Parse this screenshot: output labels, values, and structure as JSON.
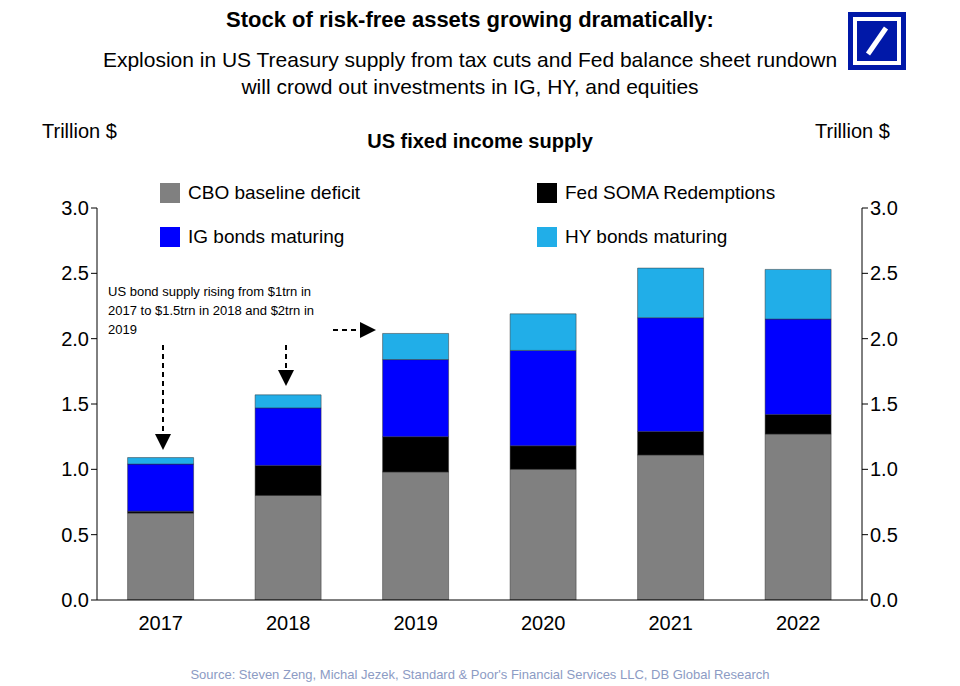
{
  "title": "Stock of risk-free assets growing dramatically:",
  "subtitle": "Explosion in US Treasury supply from tax cuts and Fed balance sheet rundown will crowd out investments in IG, HY, and equities",
  "source": "Source:  Steven Zeng, Michal Jezek, Standard  & Poor's Financial Services LLC, DB Global Research",
  "chart_data": {
    "type": "bar",
    "title": "US fixed income supply",
    "y_label": "Trillion $",
    "y2_label": "Trillion $",
    "annotation": "US bond supply rising from $1trn in 2017 to $1.5trn in 2018 and $2trn in 2019",
    "categories": [
      "2017",
      "2018",
      "2019",
      "2020",
      "2021",
      "2022"
    ],
    "series": [
      {
        "name": "CBO baseline deficit",
        "color": "#808080",
        "values": [
          0.665,
          0.8,
          0.98,
          1.0,
          1.11,
          1.27
        ]
      },
      {
        "name": "Fed SOMA Redemptions",
        "color": "#000000",
        "values": [
          0.015,
          0.23,
          0.27,
          0.18,
          0.18,
          0.15
        ]
      },
      {
        "name": "IG bonds maturing",
        "color": "#0000ff",
        "values": [
          0.36,
          0.44,
          0.59,
          0.73,
          0.87,
          0.73
        ]
      },
      {
        "name": "HY bonds maturing",
        "color": "#21aee8",
        "values": [
          0.05,
          0.1,
          0.2,
          0.28,
          0.38,
          0.38
        ]
      }
    ],
    "stacked": true,
    "ylim": [
      0,
      3
    ],
    "yticks": [
      {
        "value": 0,
        "label": "0.0"
      },
      {
        "value": 0.5,
        "label": "0.5"
      },
      {
        "value": 1,
        "label": "1.0"
      },
      {
        "value": 1.5,
        "label": "1.5"
      },
      {
        "value": 2,
        "label": "2.0"
      },
      {
        "value": 2.5,
        "label": "2.5"
      },
      {
        "value": 3,
        "label": "3.0"
      }
    ],
    "grid": false
  }
}
